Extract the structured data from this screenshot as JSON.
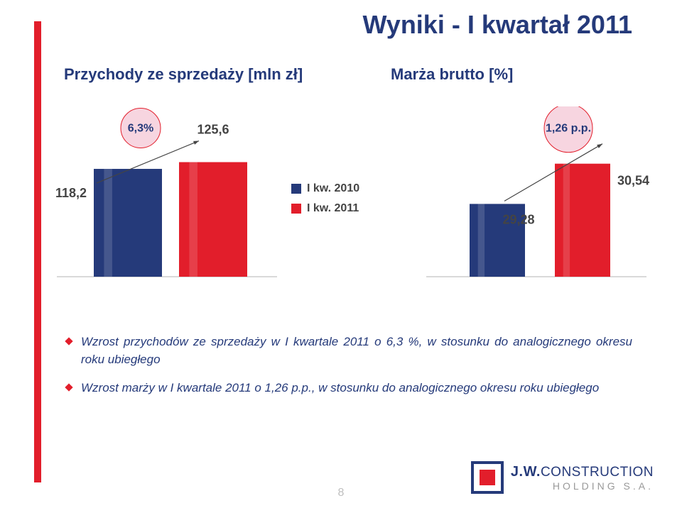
{
  "title": "Wyniki - I kwartał 2011",
  "accent_bar_color": "#e21e2b",
  "title_color": "#253a7a",
  "subtitles": {
    "left": "Przychody ze sprzedaży [mln zł]",
    "right": "Marża brutto [%]"
  },
  "legend": {
    "items": [
      {
        "label": "I kw. 2010",
        "color": "#253a7a"
      },
      {
        "label": "I kw. 2011",
        "color": "#e21e2b"
      }
    ]
  },
  "chart_left": {
    "type": "bar",
    "values": [
      118.2,
      125.6
    ],
    "value_labels": [
      "118,2",
      "125,6"
    ],
    "bar_colors": [
      "#253a7a",
      "#e21e2b"
    ],
    "ylim": [
      0,
      140
    ],
    "bar_width": 0.8,
    "gap": 0.2,
    "baseline_color": "#d9d9d9",
    "callout": {
      "text": "6,3%",
      "circle_fill": "#f7d5e0",
      "circle_stroke": "#e21e2b"
    },
    "arrow_color": "#444444"
  },
  "chart_right": {
    "type": "bar",
    "values": [
      29.28,
      30.54
    ],
    "value_labels": [
      "29,28",
      "30,54"
    ],
    "bar_colors": [
      "#253a7a",
      "#e21e2b"
    ],
    "ymin": 27,
    "ymax": 31,
    "bar_width": 0.65,
    "gap": 0.35,
    "baseline_color": "#d9d9d9",
    "callout": {
      "text": "1,26 p.p.",
      "circle_fill": "#f7d5e0",
      "circle_stroke": "#e21e2b"
    },
    "arrow_color": "#444444"
  },
  "bullets": [
    "Wzrost przychodów ze sprzedaży w I kwartale 2011 o 6,3 %, w stosunku do analogicznego okresu roku ubiegłego",
    "Wzrost marży w I kwartale 2011 o 1,26 p.p., w stosunku do analogicznego okresu roku ubiegłego"
  ],
  "bullet_icon_color": "#e21e2b",
  "page_number": "8",
  "footer": {
    "logo_mark_colors": {
      "outer": "#253a7a",
      "inner": "#e21e2b"
    },
    "brand_primary": "J.W.",
    "brand_secondary": "CONSTRUCTION",
    "brand_sub": "HOLDING S.A."
  }
}
